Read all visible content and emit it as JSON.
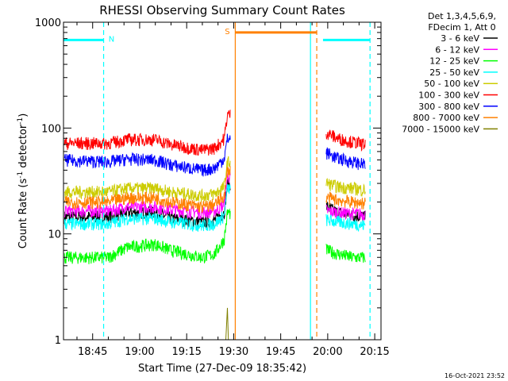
{
  "chart_data": {
    "type": "line",
    "title": "RHESSI Observing Summary Count Rates",
    "xlabel": "Start Time (27-Dec-09 18:35:42)",
    "ylabel_main": "Count Rate (s",
    "ylabel_sup1": "-1",
    "ylabel_mid": " detector",
    "ylabel_sup2": "-1",
    "ylabel_end": ")",
    "footer_date": "16-Oct-2021 23:52",
    "yscale": "log",
    "ylim": [
      1,
      1000
    ],
    "xlim": [
      "18:35:42",
      "20:17:00"
    ],
    "x_ticks": [
      {
        "t": "18:45",
        "label": "18:45"
      },
      {
        "t": "19:00",
        "label": "19:00"
      },
      {
        "t": "19:15",
        "label": "19:15"
      },
      {
        "t": "19:30",
        "label": "19:30"
      },
      {
        "t": "19:45",
        "label": "19:45"
      },
      {
        "t": "20:00",
        "label": "20:00"
      },
      {
        "t": "20:15",
        "label": "20:15"
      }
    ],
    "y_ticks": [
      {
        "v": 1,
        "label": "1"
      },
      {
        "v": 10,
        "label": "10"
      },
      {
        "v": 100,
        "label": "100"
      },
      {
        "v": 1000,
        "label": "1000"
      }
    ],
    "legend": {
      "placement": "right",
      "header": [
        "Det 1,3,4,5,6,9,",
        "FDecim 1, Att 0"
      ]
    },
    "series": [
      {
        "name": "3 - 6 keV",
        "color": "#000000",
        "t": [
          "18:36",
          "18:50",
          "18:56",
          "19:05",
          "19:10",
          "19:20",
          "19:24",
          "19:27",
          "19:28",
          "20:00",
          "20:03",
          "20:08",
          "20:12"
        ],
        "values": [
          14.5,
          14.5,
          16,
          16,
          14,
          13,
          13.5,
          16,
          30,
          18,
          16,
          15,
          14.5
        ]
      },
      {
        "name": "6 - 12 keV",
        "color": "#ff00ff",
        "t": [
          "18:36",
          "18:50",
          "18:56",
          "19:05",
          "19:10",
          "19:20",
          "19:24",
          "19:27",
          "19:28",
          "20:00",
          "20:03",
          "20:08",
          "20:12"
        ],
        "values": [
          16.5,
          16.5,
          18,
          18,
          17,
          16,
          16.5,
          19,
          35,
          16.5,
          16,
          15.5,
          15.5
        ]
      },
      {
        "name": "12 - 25 keV",
        "color": "#00ff00",
        "t": [
          "18:36",
          "18:50",
          "18:56",
          "19:05",
          "19:10",
          "19:20",
          "19:24",
          "19:27",
          "19:28",
          "20:00",
          "20:03",
          "20:08",
          "20:12"
        ],
        "values": [
          6,
          6,
          7.5,
          8,
          7,
          6,
          6.5,
          9,
          16,
          7,
          6.5,
          6,
          6
        ]
      },
      {
        "name": "25 - 50 keV",
        "color": "#00ffff",
        "t": [
          "18:36",
          "18:50",
          "18:56",
          "19:05",
          "19:10",
          "19:20",
          "19:24",
          "19:27",
          "19:28",
          "20:00",
          "20:03",
          "20:08",
          "20:12"
        ],
        "values": [
          12.5,
          12.5,
          14,
          14,
          13,
          12,
          12.5,
          15,
          27,
          13.5,
          13,
          12.5,
          12
        ]
      },
      {
        "name": "50 - 100 keV",
        "color": "#cccc00",
        "t": [
          "18:36",
          "18:50",
          "18:56",
          "19:05",
          "19:10",
          "19:20",
          "19:24",
          "19:27",
          "19:28",
          "20:00",
          "20:03",
          "20:08",
          "20:12"
        ],
        "values": [
          25,
          25,
          27,
          27,
          25,
          23,
          24,
          28,
          48,
          30,
          28,
          27,
          26
        ]
      },
      {
        "name": "100 - 300 keV",
        "color": "#ff0000",
        "t": [
          "18:36",
          "18:50",
          "18:56",
          "19:05",
          "19:10",
          "19:20",
          "19:24",
          "19:27",
          "19:28",
          "20:00",
          "20:03",
          "20:08",
          "20:12"
        ],
        "values": [
          72,
          72,
          78,
          78,
          70,
          62,
          65,
          80,
          135,
          90,
          80,
          74,
          70
        ]
      },
      {
        "name": "300 - 800 keV",
        "color": "#0000ff",
        "t": [
          "18:36",
          "18:50",
          "18:56",
          "19:05",
          "19:10",
          "19:20",
          "19:24",
          "19:27",
          "19:28",
          "20:00",
          "20:03",
          "20:08",
          "20:12"
        ],
        "values": [
          50,
          48,
          51,
          50,
          45,
          40,
          42,
          52,
          80,
          58,
          52,
          48,
          45
        ]
      },
      {
        "name": "800 - 7000 keV",
        "color": "#ff8000",
        "t": [
          "18:36",
          "18:50",
          "18:56",
          "19:05",
          "19:10",
          "19:20",
          "19:24",
          "19:27",
          "19:28",
          "20:00",
          "20:03",
          "20:08",
          "20:12"
        ],
        "values": [
          20,
          20,
          22,
          22,
          20,
          18,
          19,
          23,
          40,
          22,
          21,
          20,
          19.5
        ]
      },
      {
        "name": "7000 - 15000 keV",
        "color": "#808000",
        "t": [
          "19:27.5",
          "19:28",
          "19:28.3"
        ],
        "values": [
          1,
          2,
          1
        ]
      }
    ],
    "flags": [
      {
        "label": "N",
        "color": "#00ffff",
        "y": 680,
        "segments": [
          [
            "18:35:42",
            "18:48:30"
          ],
          [
            "19:58:30",
            "20:13:30"
          ]
        ]
      },
      {
        "label": "S",
        "color": "#ff8000",
        "y": 800,
        "segments": [
          [
            "19:30:30",
            "19:56:30"
          ]
        ]
      }
    ],
    "markers": [
      {
        "t": "18:48:30",
        "color": "#00ffff",
        "style": "dashed"
      },
      {
        "t": "19:30:30",
        "color": "#ff8000",
        "style": "solid"
      },
      {
        "t": "19:54:30",
        "color": "#00ffff",
        "style": "solid"
      },
      {
        "t": "19:56:30",
        "color": "#ff8000",
        "style": "dashed"
      },
      {
        "t": "20:13:30",
        "color": "#00ffff",
        "style": "dashed"
      }
    ],
    "data_gap": [
      "19:29",
      "19:59:30"
    ]
  }
}
